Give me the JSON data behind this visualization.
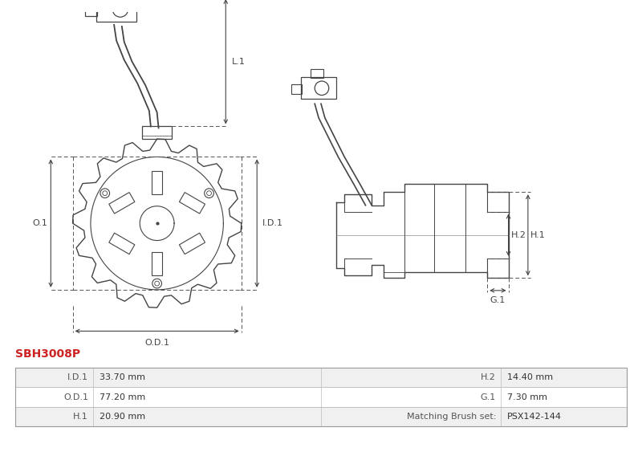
{
  "title": "SBH3008P",
  "title_color": "#cc2222",
  "background_color": "#ffffff",
  "line_color": "#444444",
  "dim_color": "#444444",
  "table_data": [
    [
      "I.D.1",
      "33.70 mm",
      "H.2",
      "14.40 mm"
    ],
    [
      "O.D.1",
      "77.20 mm",
      "G.1",
      "7.30 mm"
    ],
    [
      "H.1",
      "20.90 mm",
      "Matching Brush set:",
      "PSX142-144"
    ]
  ],
  "table_row_bg1": "#f0f0f0",
  "table_row_bg2": "#ffffff"
}
